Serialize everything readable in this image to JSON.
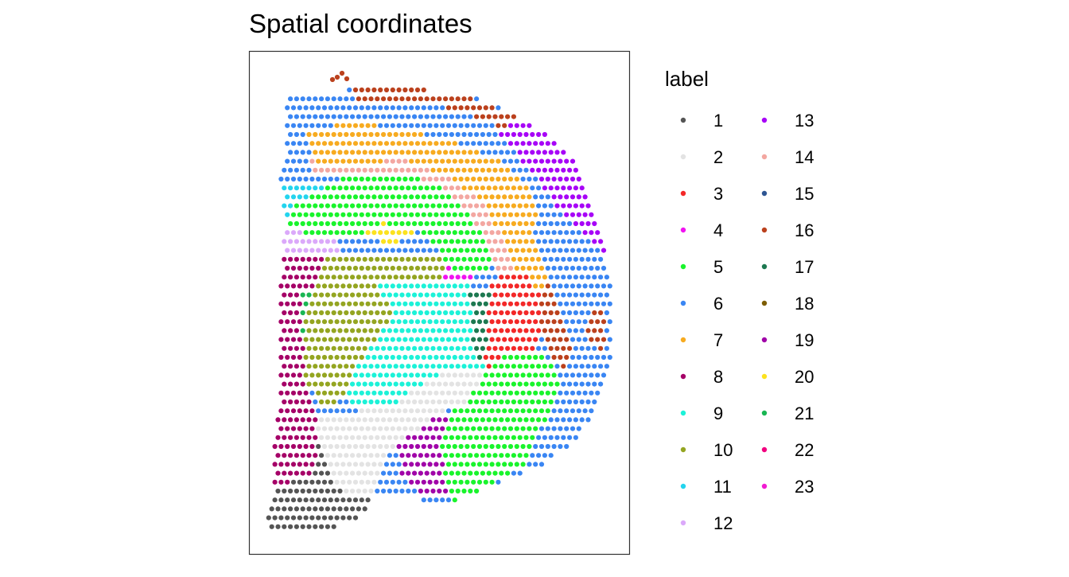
{
  "chart_data": {
    "type": "scatter",
    "title": "Spatial coordinates",
    "xlabel": "",
    "ylabel": "",
    "legend": {
      "title": "label",
      "placement": "right",
      "columns": 2
    },
    "grid": false,
    "categories": [
      "1",
      "2",
      "3",
      "4",
      "5",
      "6",
      "7",
      "8",
      "9",
      "10",
      "11",
      "12",
      "13",
      "14",
      "15",
      "16",
      "17",
      "18",
      "19",
      "20",
      "21",
      "22",
      "23"
    ],
    "colors": [
      "#555555",
      "#e3e3e3",
      "#f32828",
      "#f113f1",
      "#19f42c",
      "#3a86f3",
      "#f7ab20",
      "#a50067",
      "#1cf2d8",
      "#94a521",
      "#23d4ee",
      "#dba9fa",
      "#a704f7",
      "#f3a7a1",
      "#2e5592",
      "#bb411d",
      "#1d7850",
      "#7d5d03",
      "#a004a8",
      "#fce21e",
      "#19b653",
      "#f1007f",
      "#f11bd2"
    ]
  }
}
